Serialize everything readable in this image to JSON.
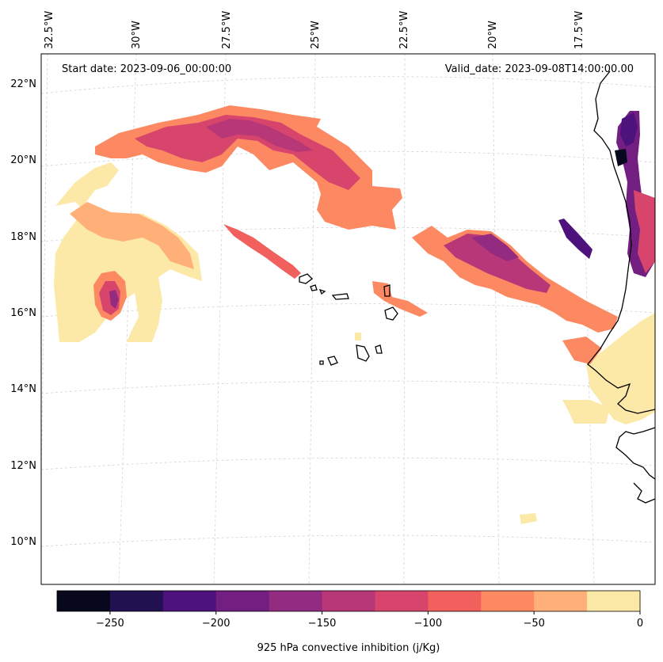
{
  "header": {
    "start_date": "Start date: 2023-09-06_00:00:00",
    "valid_date": "Valid_date: 2023-09-08T14:00:00.00"
  },
  "map": {
    "longitude_labels": [
      "32.5°W",
      "30°W",
      "27.5°W",
      "25°W",
      "22.5°W",
      "20°W",
      "17.5°W"
    ],
    "latitude_labels": [
      "22°N",
      "20°N",
      "18°N",
      "16°N",
      "14°N",
      "12°N",
      "10°N"
    ],
    "gridlines": true
  },
  "colorbar": {
    "label": "925 hPa convective inhibition (j/Kg)",
    "tick_labels": [
      "−250",
      "−200",
      "−150",
      "−100",
      "−50",
      "0"
    ],
    "levels": [
      -275,
      -250,
      -225,
      -200,
      -175,
      -150,
      -125,
      -100,
      -75,
      -50,
      -25,
      0
    ],
    "colors": [
      "#07071d",
      "#221150",
      "#4d127b",
      "#721f81",
      "#932b80",
      "#b73779",
      "#d8456c",
      "#f1605d",
      "#fc8961",
      "#feb078",
      "#fde9a7"
    ]
  },
  "chart_data": {
    "type": "heatmap",
    "variable": "925 hPa convective inhibition (j/Kg)",
    "units": "j/Kg",
    "colorbar_range": [
      -275,
      0
    ],
    "colorbar_ticks": [
      -250,
      -200,
      -150,
      -100,
      -50,
      0
    ],
    "lon_ticks": [
      "32.5°W",
      "30°W",
      "27.5°W",
      "25°W",
      "22.5°W",
      "20°W",
      "17.5°W"
    ],
    "lat_ticks": [
      "22°N",
      "20°N",
      "18°N",
      "16°N",
      "14°N",
      "12°N",
      "10°N"
    ]
  }
}
